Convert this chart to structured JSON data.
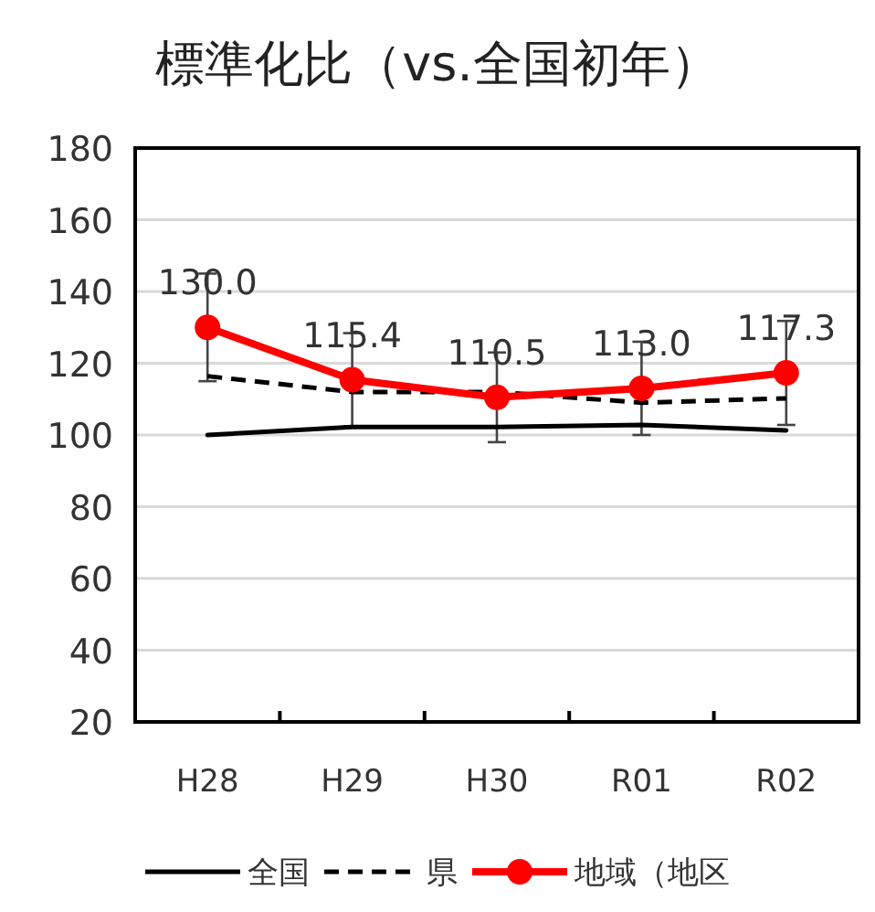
{
  "chart_data": {
    "type": "line",
    "title": "標準化比（vs.全国初年）",
    "categories": [
      "H28",
      "H29",
      "H30",
      "R01",
      "R02"
    ],
    "ylim": [
      20,
      180
    ],
    "yticks": [
      20,
      40,
      60,
      80,
      100,
      120,
      140,
      160,
      180
    ],
    "grid": "y",
    "legend": "bottom",
    "marker": "none",
    "series": [
      {
        "name": "全国",
        "color": "#000000",
        "line_style": "solid",
        "values": [
          100,
          102.2,
          102.2,
          102.8,
          101.3
        ]
      },
      {
        "name": "県",
        "color": "#000000",
        "line_style": "dashed",
        "values": [
          116.4,
          112,
          112,
          109,
          110.2
        ]
      },
      {
        "name": "地域（地区",
        "color": "#ff0000",
        "marker": "circle",
        "line_style": "solid",
        "values": [
          130.0,
          115.4,
          110.5,
          113.0,
          117.3
        ],
        "value_labels": [
          "130.0",
          "115.4",
          "110.5",
          "113.0",
          "117.3"
        ],
        "errors": [
          15,
          13,
          12.5,
          13,
          14.5
        ]
      }
    ]
  }
}
